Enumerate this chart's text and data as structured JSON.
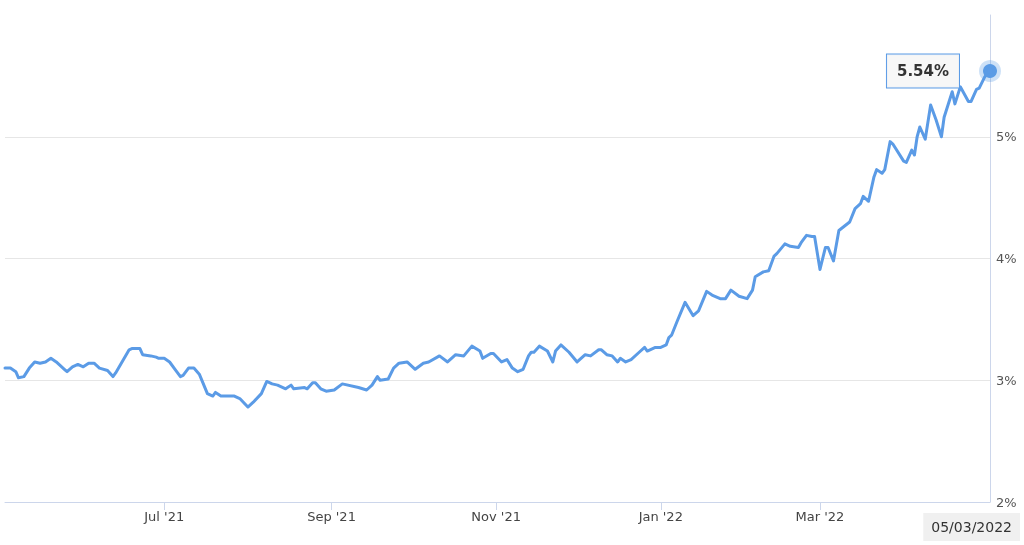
{
  "chart_data": {
    "type": "line",
    "color": "#5b9be6",
    "marker": "none",
    "grid": "y",
    "xlim": [
      "2021-05-03",
      "2022-05-03"
    ],
    "xticks": [
      {
        "value": "2021-07-01",
        "label": "Jul '21"
      },
      {
        "value": "2021-09-01",
        "label": "Sep '21"
      },
      {
        "value": "2021-11-01",
        "label": "Nov '21"
      },
      {
        "value": "2022-01-01",
        "label": "Jan '22"
      },
      {
        "value": "2022-03-01",
        "label": "Mar '22"
      }
    ],
    "ylim": [
      2,
      6
    ],
    "yticks": [
      {
        "value": 2,
        "label": "2%"
      },
      {
        "value": 3,
        "label": "3%"
      },
      {
        "value": 4,
        "label": "4%"
      },
      {
        "value": 5,
        "label": "5%"
      }
    ],
    "x": [
      "2021-05-03",
      "2021-05-05",
      "2021-05-07",
      "2021-05-08",
      "2021-05-10",
      "2021-05-12",
      "2021-05-14",
      "2021-05-16",
      "2021-05-18",
      "2021-05-20",
      "2021-05-22",
      "2021-05-25",
      "2021-05-26",
      "2021-05-28",
      "2021-05-30",
      "2021-06-01",
      "2021-06-03",
      "2021-06-05",
      "2021-06-07",
      "2021-06-10",
      "2021-06-12",
      "2021-06-13",
      "2021-06-18",
      "2021-06-19",
      "2021-06-22",
      "2021-06-23",
      "2021-06-26",
      "2021-06-28",
      "2021-06-29",
      "2021-07-01",
      "2021-07-03",
      "2021-07-05",
      "2021-07-07",
      "2021-07-08",
      "2021-07-10",
      "2021-07-12",
      "2021-07-14",
      "2021-07-17",
      "2021-07-19",
      "2021-07-20",
      "2021-07-22",
      "2021-07-25",
      "2021-07-27",
      "2021-07-29",
      "2021-08-01",
      "2021-08-03",
      "2021-08-06",
      "2021-08-08",
      "2021-08-10",
      "2021-08-12",
      "2021-08-15",
      "2021-08-17",
      "2021-08-18",
      "2021-08-22",
      "2021-08-23",
      "2021-08-25",
      "2021-08-26",
      "2021-08-28",
      "2021-08-30",
      "2021-09-02",
      "2021-09-05",
      "2021-09-11",
      "2021-09-14",
      "2021-09-16",
      "2021-09-18",
      "2021-09-19",
      "2021-09-22",
      "2021-09-24",
      "2021-09-26",
      "2021-09-29",
      "2021-10-02",
      "2021-10-05",
      "2021-10-07",
      "2021-10-11",
      "2021-10-14",
      "2021-10-17",
      "2021-10-20",
      "2021-10-23",
      "2021-10-26",
      "2021-10-27",
      "2021-10-30",
      "2021-10-31",
      "2021-11-03",
      "2021-11-05",
      "2021-11-07",
      "2021-11-09",
      "2021-11-11",
      "2021-11-13",
      "2021-11-14",
      "2021-11-15",
      "2021-11-17",
      "2021-11-20",
      "2021-11-22",
      "2021-11-23",
      "2021-11-25",
      "2021-11-28",
      "2021-12-01",
      "2021-12-04",
      "2021-12-06",
      "2021-12-09",
      "2021-12-10",
      "2021-12-12",
      "2021-12-14",
      "2021-12-16",
      "2021-12-17",
      "2021-12-19",
      "2021-12-21",
      "2021-12-24",
      "2021-12-26",
      "2021-12-27",
      "2021-12-30",
      "2022-01-01",
      "2022-01-03",
      "2022-01-04",
      "2022-01-05",
      "2022-01-07",
      "2022-01-10",
      "2022-01-13",
      "2022-01-15",
      "2022-01-18",
      "2022-01-20",
      "2022-01-23",
      "2022-01-25",
      "2022-01-27",
      "2022-01-30",
      "2022-02-02",
      "2022-02-04",
      "2022-02-05",
      "2022-02-08",
      "2022-02-10",
      "2022-02-12",
      "2022-02-13",
      "2022-02-16",
      "2022-02-18",
      "2022-02-21",
      "2022-02-22",
      "2022-02-24",
      "2022-02-26",
      "2022-02-27",
      "2022-03-01",
      "2022-03-03",
      "2022-03-04",
      "2022-03-06",
      "2022-03-08",
      "2022-03-12",
      "2022-03-14",
      "2022-03-16",
      "2022-03-17",
      "2022-03-19",
      "2022-03-21",
      "2022-03-22",
      "2022-03-24",
      "2022-03-25",
      "2022-03-27",
      "2022-03-28",
      "2022-04-01",
      "2022-04-02",
      "2022-04-04",
      "2022-04-05",
      "2022-04-06",
      "2022-04-07",
      "2022-04-09",
      "2022-04-11",
      "2022-04-13",
      "2022-04-15",
      "2022-04-16",
      "2022-04-19",
      "2022-04-20",
      "2022-04-22",
      "2022-04-25",
      "2022-04-26",
      "2022-04-28",
      "2022-04-29",
      "2022-05-01",
      "2022-05-03"
    ],
    "values": [
      3.1,
      3.1,
      3.07,
      3.02,
      3.03,
      3.1,
      3.15,
      3.14,
      3.15,
      3.18,
      3.15,
      3.09,
      3.07,
      3.11,
      3.13,
      3.11,
      3.14,
      3.14,
      3.1,
      3.08,
      3.03,
      3.06,
      3.25,
      3.26,
      3.26,
      3.21,
      3.2,
      3.19,
      3.18,
      3.18,
      3.15,
      3.09,
      3.03,
      3.04,
      3.1,
      3.1,
      3.05,
      2.89,
      2.87,
      2.9,
      2.87,
      2.87,
      2.87,
      2.85,
      2.78,
      2.82,
      2.89,
      2.99,
      2.97,
      2.96,
      2.93,
      2.96,
      2.93,
      2.94,
      2.93,
      2.98,
      2.98,
      2.93,
      2.91,
      2.92,
      2.97,
      2.94,
      2.92,
      2.96,
      3.03,
      3.0,
      3.01,
      3.1,
      3.14,
      3.15,
      3.09,
      3.14,
      3.15,
      3.2,
      3.15,
      3.21,
      3.2,
      3.28,
      3.24,
      3.18,
      3.22,
      3.22,
      3.15,
      3.17,
      3.1,
      3.07,
      3.09,
      3.2,
      3.23,
      3.23,
      3.28,
      3.24,
      3.15,
      3.24,
      3.29,
      3.23,
      3.15,
      3.21,
      3.2,
      3.25,
      3.25,
      3.21,
      3.2,
      3.15,
      3.18,
      3.15,
      3.17,
      3.23,
      3.27,
      3.24,
      3.27,
      3.27,
      3.29,
      3.35,
      3.37,
      3.48,
      3.64,
      3.53,
      3.57,
      3.73,
      3.7,
      3.67,
      3.67,
      3.74,
      3.69,
      3.67,
      3.74,
      3.85,
      3.89,
      3.9,
      4.02,
      4.04,
      4.12,
      4.1,
      4.09,
      4.13,
      4.19,
      4.18,
      4.18,
      3.91,
      4.09,
      4.09,
      3.98,
      4.23,
      4.3,
      4.41,
      4.45,
      4.51,
      4.47,
      4.67,
      4.73,
      4.7,
      4.73,
      4.96,
      4.94,
      4.8,
      4.79,
      4.89,
      4.85,
      5.0,
      5.08,
      4.98,
      5.26,
      5.14,
      5.0,
      5.16,
      5.37,
      5.27,
      5.41,
      5.29,
      5.29,
      5.39,
      5.4,
      5.49,
      5.54
    ],
    "annotations": [
      {
        "text": "5.54%",
        "x": "2022-05-03",
        "y": 5.54
      },
      "05/03/2022"
    ]
  }
}
